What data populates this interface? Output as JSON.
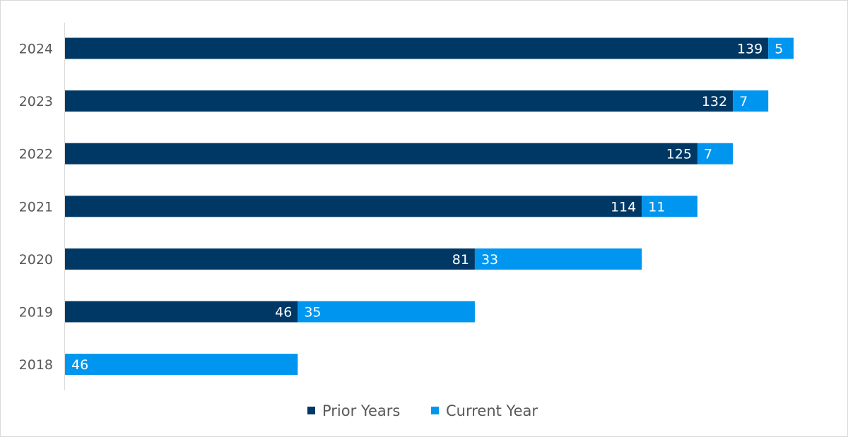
{
  "chart_data": {
    "type": "bar",
    "orientation": "horizontal",
    "stacked": true,
    "categories": [
      "2024",
      "2023",
      "2022",
      "2021",
      "2020",
      "2019",
      "2018"
    ],
    "series": [
      {
        "name": "Prior Years",
        "color": "#003865",
        "values": [
          139,
          132,
          125,
          114,
          81,
          46,
          0
        ]
      },
      {
        "name": "Current Year",
        "color": "#0096ef",
        "values": [
          5,
          7,
          7,
          11,
          33,
          35,
          46
        ]
      }
    ],
    "xlim": [
      0,
      144
    ],
    "grid": false,
    "legend": "bottom-center",
    "data_labels": true
  }
}
